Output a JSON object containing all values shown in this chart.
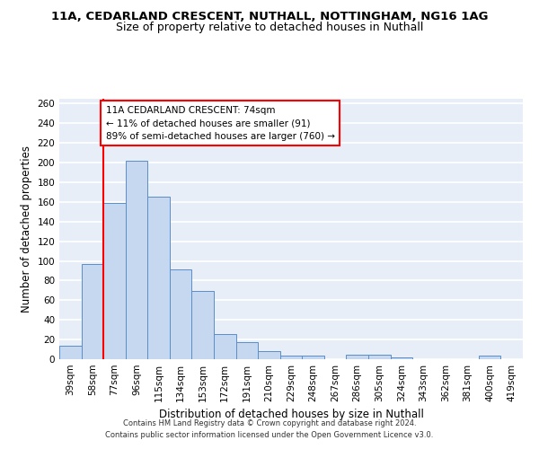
{
  "title_line1": "11A, CEDARLAND CRESCENT, NUTHALL, NOTTINGHAM, NG16 1AG",
  "title_line2": "Size of property relative to detached houses in Nuthall",
  "xlabel": "Distribution of detached houses by size in Nuthall",
  "ylabel": "Number of detached properties",
  "categories": [
    "39sqm",
    "58sqm",
    "77sqm",
    "96sqm",
    "115sqm",
    "134sqm",
    "153sqm",
    "172sqm",
    "191sqm",
    "210sqm",
    "229sqm",
    "248sqm",
    "267sqm",
    "286sqm",
    "305sqm",
    "324sqm",
    "343sqm",
    "362sqm",
    "381sqm",
    "400sqm",
    "419sqm"
  ],
  "values": [
    14,
    97,
    159,
    202,
    165,
    91,
    69,
    26,
    17,
    8,
    4,
    4,
    0,
    5,
    5,
    2,
    0,
    0,
    0,
    4,
    0
  ],
  "bar_color": "#c5d8f0",
  "bar_edge_color": "#5b8dc8",
  "property_line_x": 1.5,
  "annotation_text": "11A CEDARLAND CRESCENT: 74sqm\n← 11% of detached houses are smaller (91)\n89% of semi-detached houses are larger (760) →",
  "annotation_box_color": "white",
  "annotation_box_edge_color": "red",
  "red_line_color": "red",
  "ylim": [
    0,
    265
  ],
  "yticks": [
    0,
    20,
    40,
    60,
    80,
    100,
    120,
    140,
    160,
    180,
    200,
    220,
    240,
    260
  ],
  "background_color": "#e8eef8",
  "grid_color": "white",
  "footer_line1": "Contains HM Land Registry data © Crown copyright and database right 2024.",
  "footer_line2": "Contains public sector information licensed under the Open Government Licence v3.0.",
  "title_fontsize": 9.5,
  "subtitle_fontsize": 9,
  "label_fontsize": 8.5,
  "tick_fontsize": 7.5,
  "annotation_fontsize": 7.5,
  "footer_fontsize": 6
}
